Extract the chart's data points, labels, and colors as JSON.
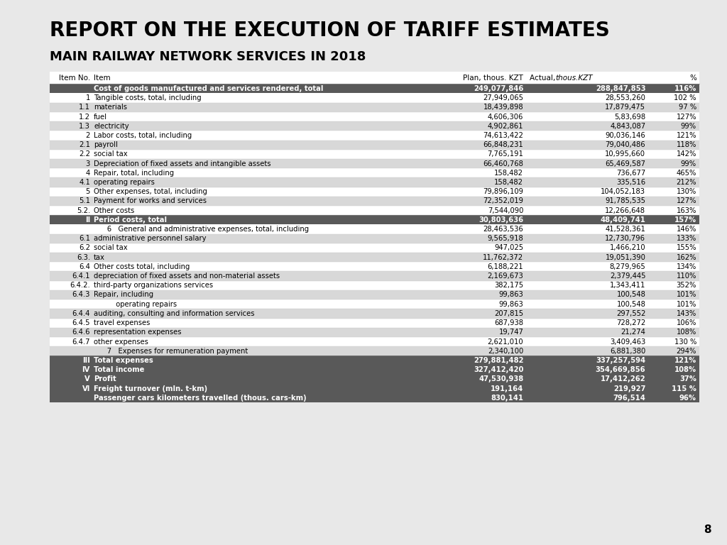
{
  "title1": "REPORT ON THE EXECUTION OF TARIFF ESTIMATES",
  "title2": "MAIN RAILWAY NETWORK SERVICES IN 2018",
  "rows": [
    {
      "no": "",
      "item": "Cost of goods manufactured and services rendered, total",
      "plan": "249,077,846",
      "actual": "288,847,853",
      "pct": "116%",
      "style": "dark_header"
    },
    {
      "no": "1",
      "item": "Tangible costs, total, including",
      "plan": "27,949,065",
      "actual": "28,553,260",
      "pct": "102 %",
      "style": "normal"
    },
    {
      "no": "1.1",
      "item": "materials",
      "plan": "18,439,898",
      "actual": "17,879,475",
      "pct": "97 %",
      "style": "light"
    },
    {
      "no": "1.2",
      "item": "fuel",
      "plan": "4,606,306",
      "actual": "5,83,698",
      "pct": "127%",
      "style": "normal"
    },
    {
      "no": "1.3",
      "item": "electricity",
      "plan": "4,902,861",
      "actual": "4,843,087",
      "pct": "99%",
      "style": "light"
    },
    {
      "no": "2",
      "item": "Labor costs, total, including",
      "plan": "74,613,422",
      "actual": "90,036,146",
      "pct": "121%",
      "style": "normal"
    },
    {
      "no": "2.1",
      "item": "payroll",
      "plan": "66,848,231",
      "actual": "79,040,486",
      "pct": "118%",
      "style": "light"
    },
    {
      "no": "2.2",
      "item": "social tax",
      "plan": "7,765,191",
      "actual": "10,995,660",
      "pct": "142%",
      "style": "normal"
    },
    {
      "no": "3",
      "item": "Depreciation of fixed assets and intangible assets",
      "plan": "66,460,768",
      "actual": "65,469,587",
      "pct": "99%",
      "style": "light"
    },
    {
      "no": "4",
      "item": "Repair, total, including",
      "plan": "158,482",
      "actual": "736,677",
      "pct": "465%",
      "style": "normal"
    },
    {
      "no": "4.1",
      "item": "operating repairs",
      "plan": "158,482",
      "actual": "335,516",
      "pct": "212%",
      "style": "light"
    },
    {
      "no": "5",
      "item": "Other expenses, total, including",
      "plan": "79,896,109",
      "actual": "104,052,183",
      "pct": "130%",
      "style": "normal"
    },
    {
      "no": "5.1",
      "item": "Payment for works and services",
      "plan": "72,352,019",
      "actual": "91,785,535",
      "pct": "127%",
      "style": "light"
    },
    {
      "no": "5.2.",
      "item": "Other costs",
      "plan": "7,544,090",
      "actual": "12,266,648",
      "pct": "163%",
      "style": "normal"
    },
    {
      "no": "II",
      "item": "Period costs, total",
      "plan": "30,803,636",
      "actual": "48,409,741",
      "pct": "157%",
      "style": "dark_header"
    },
    {
      "no": "",
      "item": "      6   General and administrative expenses, total, including",
      "plan": "28,463,536",
      "actual": "41,528,361",
      "pct": "146%",
      "style": "normal"
    },
    {
      "no": "6.1",
      "item": "administrative personnel salary",
      "plan": "9,565,918",
      "actual": "12,730,796",
      "pct": "133%",
      "style": "light"
    },
    {
      "no": "6.2",
      "item": "social tax",
      "plan": "947,025",
      "actual": "1,466,210",
      "pct": "155%",
      "style": "normal"
    },
    {
      "no": "6.3.",
      "item": "tax",
      "plan": "11,762,372",
      "actual": "19,051,390",
      "pct": "162%",
      "style": "light"
    },
    {
      "no": "6.4",
      "item": "Other costs total, including",
      "plan": "6,188,221",
      "actual": "8,279,965",
      "pct": "134%",
      "style": "normal"
    },
    {
      "no": "6.4.1",
      "item": "depreciation of fixed assets and non-material assets",
      "plan": "2,169,673",
      "actual": "2,379,445",
      "pct": "110%",
      "style": "light"
    },
    {
      "no": "6.4.2.",
      "item": "third-party organizations services",
      "plan": "382,175",
      "actual": "1,343,411",
      "pct": "352%",
      "style": "normal"
    },
    {
      "no": "6.4.3",
      "item": "Repair, including",
      "plan": "99,863",
      "actual": "100,548",
      "pct": "101%",
      "style": "light"
    },
    {
      "no": "",
      "item": "          operating repairs",
      "plan": "99,863",
      "actual": "100,548",
      "pct": "101%",
      "style": "normal"
    },
    {
      "no": "6.4.4",
      "item": "auditing, consulting and information services",
      "plan": "207,815",
      "actual": "297,552",
      "pct": "143%",
      "style": "light"
    },
    {
      "no": "6.4.5",
      "item": "travel expenses",
      "plan": "687,938",
      "actual": "728,272",
      "pct": "106%",
      "style": "normal"
    },
    {
      "no": "6.4.6",
      "item": "representation expenses",
      "plan": "19,747",
      "actual": "21,274",
      "pct": "108%",
      "style": "light"
    },
    {
      "no": "6.4.7",
      "item": "other expenses",
      "plan": "2,621,010",
      "actual": "3,409,463",
      "pct": "130 %",
      "style": "normal"
    },
    {
      "no": "",
      "item": "      7   Expenses for remuneration payment",
      "plan": "2,340,100",
      "actual": "6,881,380",
      "pct": "294%",
      "style": "light"
    },
    {
      "no": "III",
      "item": "Total expenses",
      "plan": "279,881,482",
      "actual": "337,257,594",
      "pct": "121%",
      "style": "dark_footer"
    },
    {
      "no": "IV",
      "item": "Total income",
      "plan": "327,412,420",
      "actual": "354,669,856",
      "pct": "108%",
      "style": "dark_footer"
    },
    {
      "no": "V",
      "item": "Profit",
      "plan": "47,530,938",
      "actual": "17,412,262",
      "pct": "37%",
      "style": "dark_footer"
    },
    {
      "no": "VI",
      "item": "Freight turnover (mln. t-km)",
      "plan": "191,164",
      "actual": "219,927",
      "pct": "115 %",
      "style": "dark_footer"
    },
    {
      "no": "",
      "item": "Passenger cars kilometers travelled (thous. cars-km)",
      "plan": "830,141",
      "actual": "796,514",
      "pct": "96%",
      "style": "dark_footer"
    }
  ],
  "dark_header_bg": "#595959",
  "dark_header_fg": "#ffffff",
  "light_row_bg": "#d8d8d8",
  "normal_row_bg": "#ffffff",
  "fig_bg": "#e8e8e8",
  "page_num": "8"
}
